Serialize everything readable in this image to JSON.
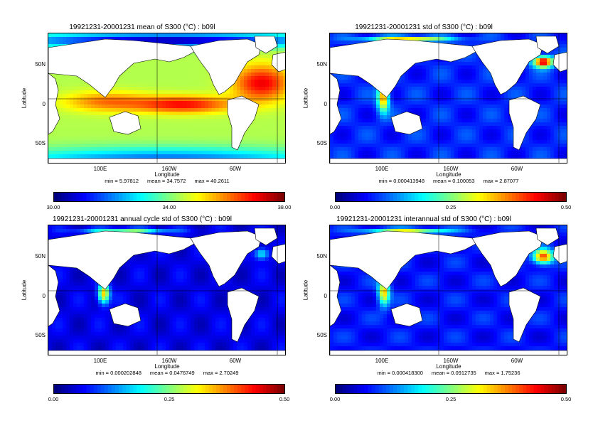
{
  "panels": [
    {
      "title": "19921231-20001231 mean of S300 (°C) : b09l",
      "ylabel": "Latitude",
      "yticks": [
        "50N",
        "0",
        "50S"
      ],
      "xticks": [
        "100E",
        "160W",
        "60W"
      ],
      "xlabel": "Longitude",
      "stats": {
        "min": "min = 5.97812",
        "mean": "mean = 34.7572",
        "max": "max = 40.2611"
      },
      "colorbar": {
        "min": "30.00",
        "mid": "34.00",
        "max": "38.00"
      },
      "field": "mean"
    },
    {
      "title": "19921231-20001231 std of S300 (°C) : b09l",
      "ylabel": "Latitude",
      "yticks": [
        "50N",
        "0",
        "50S"
      ],
      "xticks": [
        "100E",
        "160W",
        "60W"
      ],
      "xlabel": "Longitude",
      "stats": {
        "min": "min = 0.000413948",
        "mean": "mean = 0.100053",
        "max": "max = 2.87077"
      },
      "colorbar": {
        "min": "0.00",
        "mid": "0.25",
        "max": "0.50"
      },
      "field": "std"
    },
    {
      "title": "19921231-20001231 annual cycle std of S300 (°C) : b09l",
      "ylabel": "Latitude",
      "yticks": [
        "50N",
        "0",
        "50S"
      ],
      "xticks": [
        "100E",
        "160W",
        "60W"
      ],
      "xlabel": "Longitude",
      "stats": {
        "min": "min = 0.000202848",
        "mean": "mean = 0.0476749",
        "max": "max = 2.70249"
      },
      "colorbar": {
        "min": "0.00",
        "mid": "0.25",
        "max": "0.50"
      },
      "field": "annual"
    },
    {
      "title": "19921231-20001231 interannual std of S300 (°C) : b09l",
      "ylabel": "Latitude",
      "yticks": [
        "50N",
        "0",
        "50S"
      ],
      "xticks": [
        "100E",
        "160W",
        "60W"
      ],
      "xlabel": "Longitude",
      "stats": {
        "min": "min = 0.000418300",
        "mean": "mean = 0.0912735",
        "max": "max = 1.75236"
      },
      "colorbar": {
        "min": "0.00",
        "mid": "0.25",
        "max": "0.50"
      },
      "field": "interannual"
    }
  ],
  "colors": {
    "land": "#ffffff",
    "colormap": [
      "#00007f",
      "#0000ff",
      "#007fff",
      "#00ffff",
      "#7fff7f",
      "#ffff00",
      "#ff7f00",
      "#ff0000",
      "#7f0000"
    ]
  }
}
